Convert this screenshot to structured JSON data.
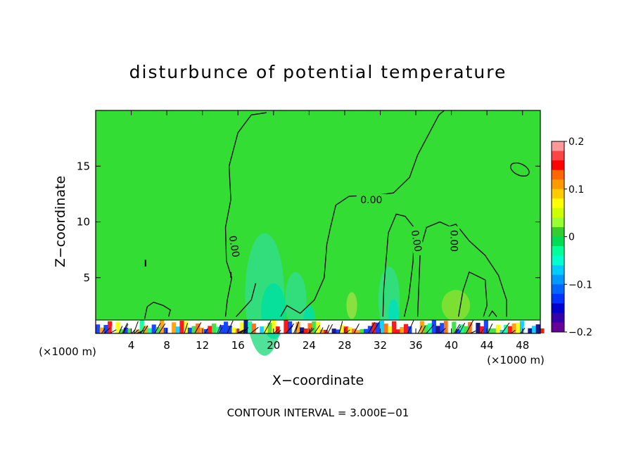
{
  "chart_data": {
    "type": "heatmap",
    "title": "disturbunce of potential temperature",
    "xlabel": "X−coordinate",
    "ylabel": "Z−coordinate",
    "x_unit_left": "(×1000 m)",
    "x_unit_right": "(×1000 m)",
    "footer": "CONTOUR INTERVAL = 3.000E−01",
    "xlim": [
      0,
      50
    ],
    "ylim": [
      0,
      20
    ],
    "xticks": [
      4,
      8,
      12,
      16,
      20,
      24,
      28,
      32,
      36,
      40,
      44,
      48
    ],
    "yticks": [
      5,
      10,
      15
    ],
    "contour_labels": [
      {
        "text": "0.00",
        "x": 31.0,
        "y": 12.0,
        "rotate": 0
      },
      {
        "text": "0.00",
        "x": 15.6,
        "y": 7.8,
        "rotate": 80
      },
      {
        "text": "0.00",
        "x": 36.1,
        "y": 8.3,
        "rotate": 80
      },
      {
        "text": "0.00",
        "x": 40.3,
        "y": 8.3,
        "rotate": 90
      }
    ],
    "colorbar": {
      "min": -0.2,
      "max": 0.2,
      "ticks": [
        0.2,
        0.1,
        0,
        -0.1,
        -0.2
      ],
      "tick_labels": [
        "0.2",
        "0.1",
        "0",
        "−0.1",
        "−0.2"
      ],
      "colors": [
        "#ff9999",
        "#ff4444",
        "#ff0000",
        "#ff6600",
        "#ff9900",
        "#ffcc00",
        "#ffff00",
        "#ccff00",
        "#99ff33",
        "#33cc33",
        "#00dd55",
        "#00ff99",
        "#00ffcc",
        "#00ccff",
        "#0099ff",
        "#0066ff",
        "#0033ff",
        "#0000cc",
        "#3300aa",
        "#660099"
      ]
    },
    "background_color": "#33dd33"
  }
}
